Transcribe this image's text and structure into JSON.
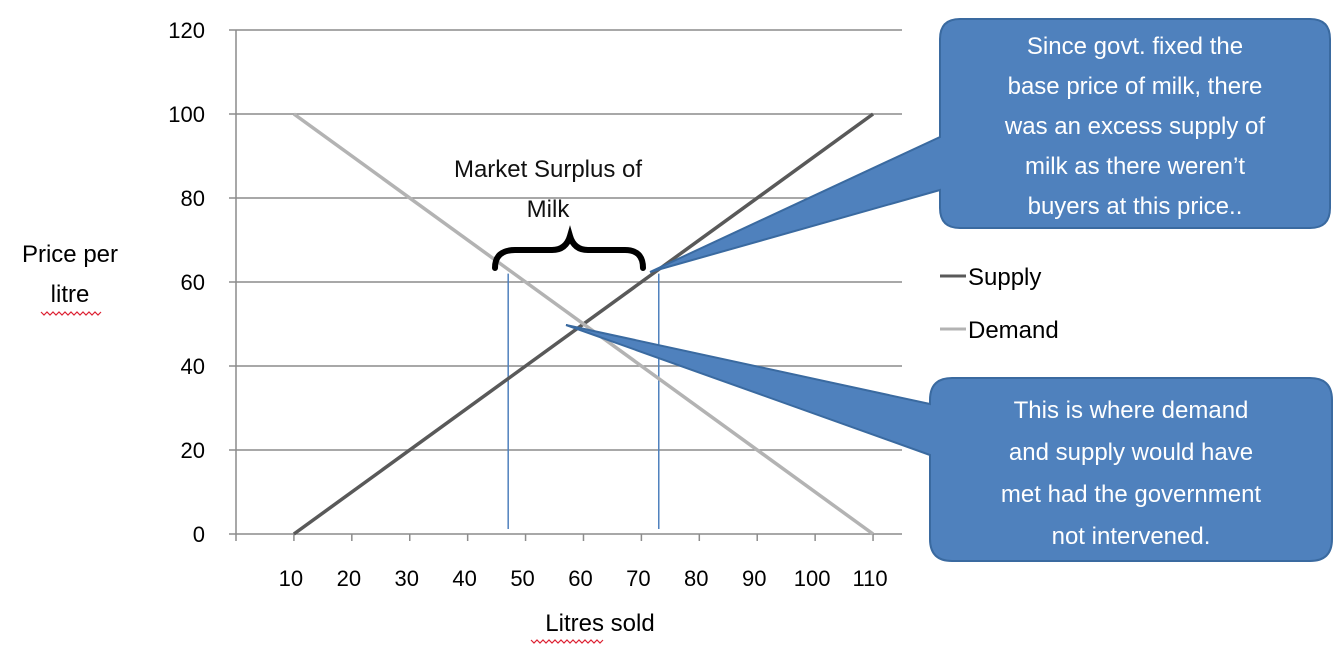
{
  "chart_data": {
    "type": "line",
    "ylabel": "Price per litre",
    "xlabel": "Litres sold",
    "x": [
      10,
      20,
      30,
      40,
      50,
      60,
      70,
      80,
      90,
      100,
      110
    ],
    "xlim": [
      0,
      115
    ],
    "ylim": [
      0,
      120
    ],
    "yticks": [
      0,
      20,
      40,
      60,
      80,
      100,
      120
    ],
    "grid": "horizontal",
    "legend": "right",
    "series": [
      {
        "name": "Supply",
        "color": "#595959",
        "points": [
          [
            10,
            0
          ],
          [
            110,
            100
          ]
        ]
      },
      {
        "name": "Demand",
        "color": "#b3b3b3",
        "points": [
          [
            10,
            100
          ],
          [
            110,
            0
          ]
        ]
      }
    ],
    "guide_lines": [
      {
        "x": 47,
        "y_top": 62,
        "color": "#4f81bd"
      },
      {
        "x": 73,
        "y_top": 62,
        "color": "#4f81bd"
      }
    ],
    "annotations": {
      "surplus_label": [
        "Market Surplus of",
        "Milk"
      ],
      "callout_top": [
        "Since govt. fixed the",
        "base price of milk, there",
        "was an excess supply of",
        "milk as there weren’t",
        "buyers at this price.."
      ],
      "callout_bottom": [
        "This is where demand",
        "and supply would have",
        "met had the government",
        "not intervened."
      ],
      "callout_color": "#4f81bd",
      "equilibrium_point": [
        60,
        50
      ],
      "surplus_point": [
        73,
        62
      ]
    }
  }
}
